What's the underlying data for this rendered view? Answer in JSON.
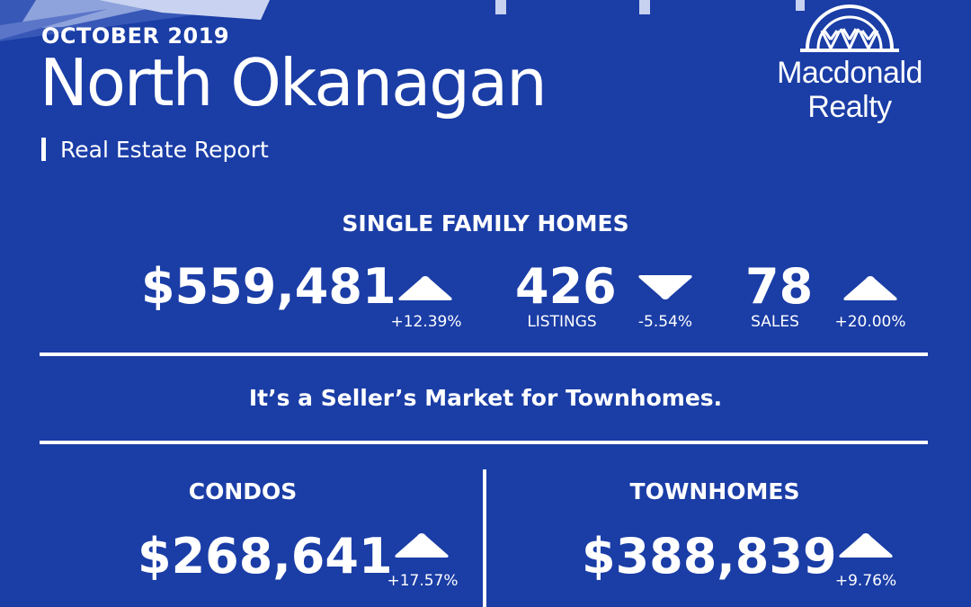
{
  "header": {
    "date": "OCTOBER 2019",
    "region": "North Okanagan",
    "subtitle": "Real Estate Report"
  },
  "logo": {
    "line1": "Macdonald",
    "line2": "Realty"
  },
  "single_family": {
    "heading": "SINGLE FAMILY HOMES",
    "price": {
      "value": "$559,481",
      "change": "+12.39%",
      "trend": "up"
    },
    "listings": {
      "value": "426",
      "label": "LISTINGS",
      "change": "-5.54%",
      "trend": "down"
    },
    "sales": {
      "value": "78",
      "label": "SALES",
      "change": "+20.00%",
      "trend": "up"
    }
  },
  "market_message": "It’s a Seller’s Market for Townhomes.",
  "condos": {
    "heading": "CONDOS",
    "price": {
      "value": "$268,641",
      "change": "+17.57%",
      "trend": "up"
    }
  },
  "townhomes": {
    "heading": "TOWNHOMES",
    "price": {
      "value": "$388,839",
      "change": "+9.76%",
      "trend": "up"
    }
  },
  "icons": {
    "trend_up": "triangle-up-icon",
    "trend_down": "triangle-down-icon",
    "logo_mark": "fan-arch-logo-icon"
  },
  "colors": {
    "background": "#1a3da6",
    "foreground": "#ffffff"
  }
}
